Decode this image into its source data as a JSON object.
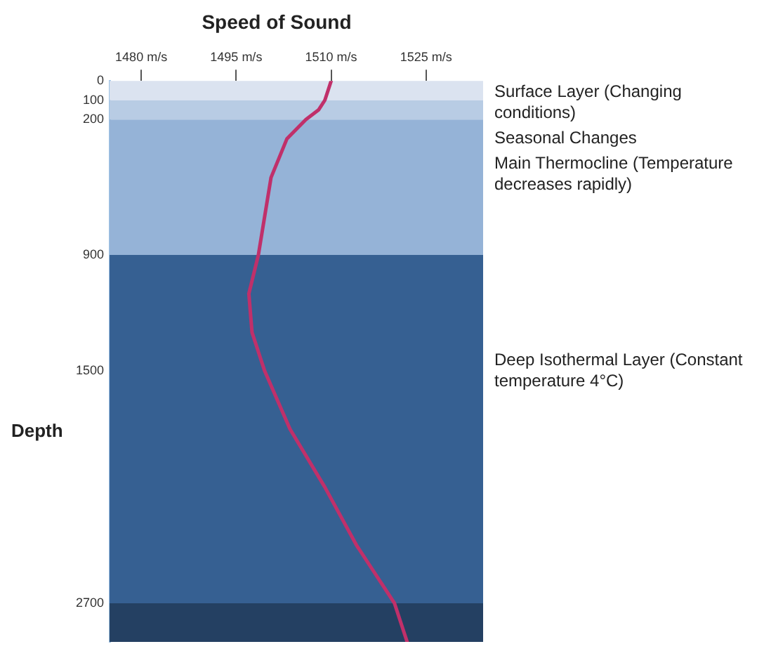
{
  "chart_data": {
    "type": "line",
    "title": "Speed of Sound",
    "ylabel": "Depth",
    "xlim": [
      1475,
      1534
    ],
    "xticks": [
      {
        "value": 1480,
        "label": "1480 m/s"
      },
      {
        "value": 1495,
        "label": "1495 m/s"
      },
      {
        "value": 1510,
        "label": "1510 m/s"
      },
      {
        "value": 1525,
        "label": "1525 m/s"
      }
    ],
    "ylim": [
      2900,
      0
    ],
    "yticks": [
      0,
      100,
      200,
      900,
      1500,
      2700
    ],
    "grid": false,
    "legend": false,
    "marker": "none",
    "line_style": "solid",
    "series": [
      {
        "color": "#c0306a",
        "x": [
          1510,
          1509.5,
          1509,
          1508,
          1506,
          1503,
          1500.5,
          1499.5,
          1498.5,
          1497,
          1497.5,
          1499.5,
          1503.5,
          1509,
          1514,
          1520,
          1522
        ],
        "values": [
          0,
          50,
          100,
          150,
          200,
          300,
          500,
          700,
          900,
          1100,
          1300,
          1500,
          1800,
          2100,
          2400,
          2700,
          2900
        ]
      }
    ],
    "bands": [
      {
        "axis": "y",
        "from": 0,
        "to": 100,
        "label": "Surface Layer (Changing conditions)",
        "color": "#dbe3f0"
      },
      {
        "axis": "y",
        "from": 100,
        "to": 200,
        "label": "Seasonal Changes",
        "color": "#b8cce4"
      },
      {
        "axis": "y",
        "from": 200,
        "to": 900,
        "label": "Main Thermocline (Temperature decreases rapidly)",
        "color": "#95b3d7"
      },
      {
        "axis": "y",
        "from": 900,
        "to": 2700,
        "label": "Deep Isothermal Layer (Constant temperature 4°C)",
        "color": "#366092"
      },
      {
        "axis": "y",
        "from": 2700,
        "to": 2900,
        "color": "#244062"
      }
    ]
  }
}
